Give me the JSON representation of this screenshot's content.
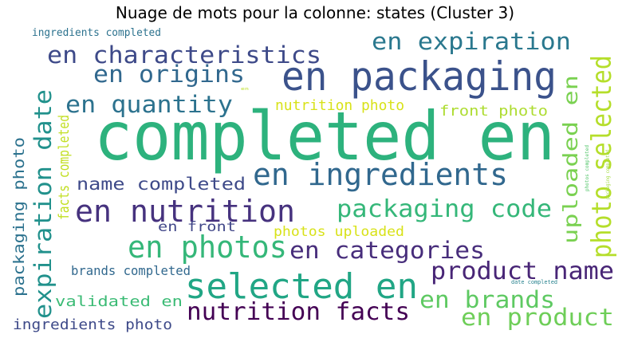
{
  "chart_data": {
    "type": "wordcloud",
    "title": "Nuage de mots pour la colonne: states (Cluster 3)",
    "words": [
      {
        "text": "completed en",
        "color": "#2db27d"
      },
      {
        "text": "en packaging",
        "color": "#3b528b"
      },
      {
        "text": "en ingredients",
        "color": "#31688e"
      },
      {
        "text": "en nutrition",
        "color": "#46327e"
      },
      {
        "text": "en photos",
        "color": "#35b779"
      },
      {
        "text": "selected en",
        "color": "#21a685"
      },
      {
        "text": "en characteristics",
        "color": "#3e4a89"
      },
      {
        "text": "en expiration",
        "color": "#2a788e"
      },
      {
        "text": "en origins",
        "color": "#31688e"
      },
      {
        "text": "en quantity",
        "color": "#2c728e"
      },
      {
        "text": "packaging code",
        "color": "#35b779"
      },
      {
        "text": "en categories",
        "color": "#472d7b"
      },
      {
        "text": "product name",
        "color": "#482576"
      },
      {
        "text": "nutrition facts",
        "color": "#440154"
      },
      {
        "text": "en brands",
        "color": "#5ec962"
      },
      {
        "text": "en product",
        "color": "#6ece58"
      },
      {
        "text": "expiration date",
        "color": "#21918c"
      },
      {
        "text": "photo selected",
        "color": "#b5de2b"
      },
      {
        "text": "uploaded en",
        "color": "#7ad151"
      },
      {
        "text": "name completed",
        "color": "#3e4a89"
      },
      {
        "text": "packaging photo",
        "color": "#2c728e"
      },
      {
        "text": "facts completed",
        "color": "#c2df23"
      },
      {
        "text": "nutrition photo",
        "color": "#d8e219"
      },
      {
        "text": "front photo",
        "color": "#addc30"
      },
      {
        "text": "photos uploaded",
        "color": "#d8e219"
      },
      {
        "text": "en front",
        "color": "#404688"
      },
      {
        "text": "validated en",
        "color": "#3bbb75"
      },
      {
        "text": "brands completed",
        "color": "#31688e"
      },
      {
        "text": "ingredients photo",
        "color": "#3e4a89"
      },
      {
        "text": "ingredients completed",
        "color": "#2c728e"
      },
      {
        "text": "date completed",
        "color": "#26828e"
      },
      {
        "text": "packaging completed",
        "color": "#9fda3a"
      },
      {
        "text": "photos completed",
        "color": "#52c569"
      },
      {
        "text": "en",
        "color": "#bddf26"
      }
    ]
  }
}
